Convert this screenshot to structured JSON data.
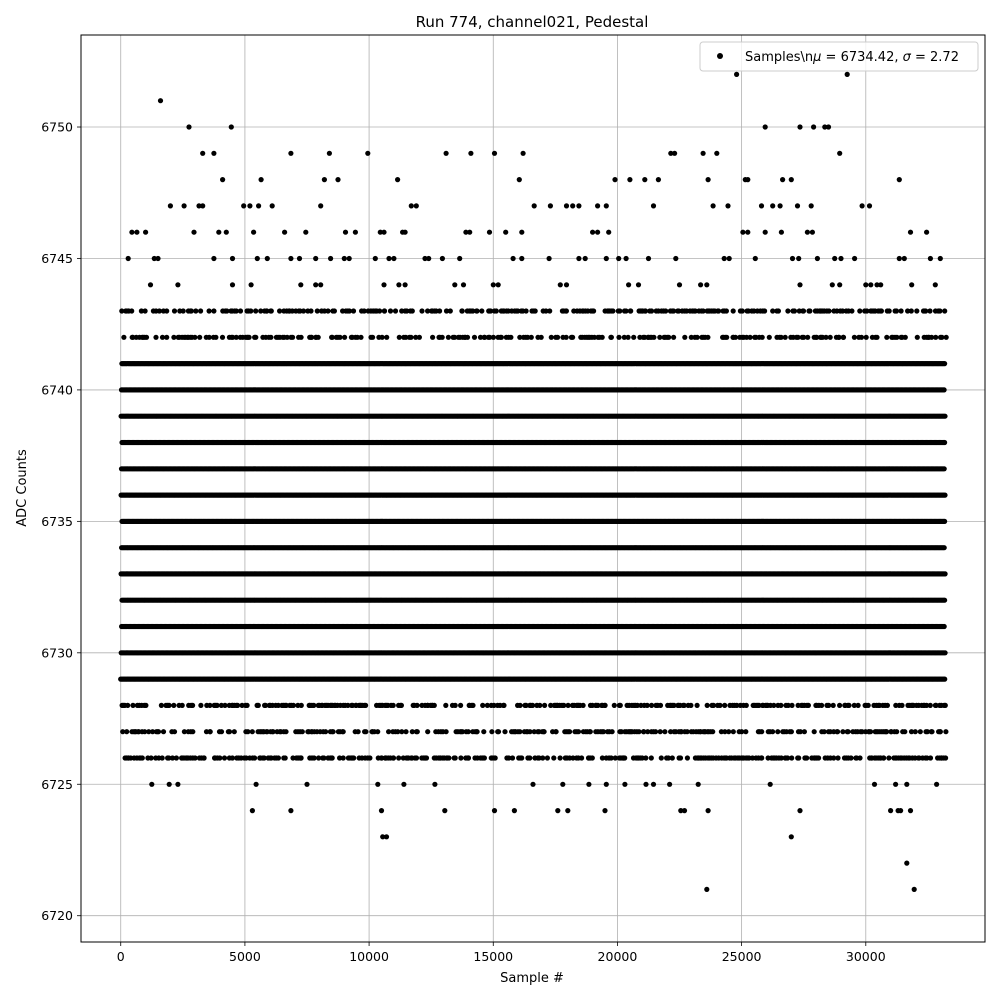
{
  "chart_data": {
    "type": "scatter",
    "title": "Run 774, channel021, Pedestal",
    "xlabel": "Sample #",
    "ylabel": "ADC Counts",
    "xlim": [
      -1600,
      34800
    ],
    "ylim": [
      6719.0,
      6753.5
    ],
    "xticks": [
      0,
      5000,
      10000,
      15000,
      20000,
      25000,
      30000
    ],
    "yticks": [
      6720,
      6725,
      6730,
      6735,
      6740,
      6745,
      6750
    ],
    "grid": true,
    "legend": {
      "position": "top-right",
      "entries": [
        {
          "label": "Samples\\n$\\mu$ = 6734.42, $\\sigma$ = 2.72",
          "label_prefix": "Samples\\n",
          "mu_symbol": "μ",
          "mu_text": " = 6734.42, ",
          "sigma_symbol": "σ",
          "sigma_text": " = 2.72"
        }
      ]
    },
    "marker_color": "#000000",
    "n_samples": 33200,
    "series": [
      {
        "name": "Samples",
        "dense_levels": [
          6729,
          6730,
          6731,
          6732,
          6733,
          6734,
          6735,
          6736,
          6737,
          6738,
          6739,
          6740,
          6741
        ],
        "sparse_levels": [
          6726,
          6727,
          6728,
          6742,
          6743
        ],
        "points": [
          {
            "x": 1600,
            "y": 6751
          },
          {
            "x": 2750,
            "y": 6750
          },
          {
            "x": 4450,
            "y": 6750
          },
          {
            "x": 25950,
            "y": 6750
          },
          {
            "x": 27350,
            "y": 6750
          },
          {
            "x": 27900,
            "y": 6750
          },
          {
            "x": 28350,
            "y": 6750
          },
          {
            "x": 28500,
            "y": 6750
          },
          {
            "x": 24800,
            "y": 6752
          },
          {
            "x": 29250,
            "y": 6752
          },
          {
            "x": 3300,
            "y": 6749
          },
          {
            "x": 3750,
            "y": 6749
          },
          {
            "x": 6850,
            "y": 6749
          },
          {
            "x": 8400,
            "y": 6749
          },
          {
            "x": 9950,
            "y": 6749
          },
          {
            "x": 13100,
            "y": 6749
          },
          {
            "x": 14100,
            "y": 6749
          },
          {
            "x": 15050,
            "y": 6749
          },
          {
            "x": 16200,
            "y": 6749
          },
          {
            "x": 22150,
            "y": 6749
          },
          {
            "x": 22300,
            "y": 6749
          },
          {
            "x": 23450,
            "y": 6749
          },
          {
            "x": 24000,
            "y": 6749
          },
          {
            "x": 28950,
            "y": 6749
          },
          {
            "x": 4100,
            "y": 6748
          },
          {
            "x": 5650,
            "y": 6748
          },
          {
            "x": 8200,
            "y": 6748
          },
          {
            "x": 8750,
            "y": 6748
          },
          {
            "x": 11150,
            "y": 6748
          },
          {
            "x": 16050,
            "y": 6748
          },
          {
            "x": 19900,
            "y": 6748
          },
          {
            "x": 20500,
            "y": 6748
          },
          {
            "x": 21100,
            "y": 6748
          },
          {
            "x": 21650,
            "y": 6748
          },
          {
            "x": 23650,
            "y": 6748
          },
          {
            "x": 25150,
            "y": 6748
          },
          {
            "x": 25250,
            "y": 6748
          },
          {
            "x": 26650,
            "y": 6748
          },
          {
            "x": 27000,
            "y": 6748
          },
          {
            "x": 31350,
            "y": 6748
          },
          {
            "x": 2000,
            "y": 6747
          },
          {
            "x": 2550,
            "y": 6747
          },
          {
            "x": 3150,
            "y": 6747
          },
          {
            "x": 3300,
            "y": 6747
          },
          {
            "x": 4950,
            "y": 6747
          },
          {
            "x": 5200,
            "y": 6747
          },
          {
            "x": 5550,
            "y": 6747
          },
          {
            "x": 6100,
            "y": 6747
          },
          {
            "x": 8050,
            "y": 6747
          },
          {
            "x": 11700,
            "y": 6747
          },
          {
            "x": 11900,
            "y": 6747
          },
          {
            "x": 16650,
            "y": 6747
          },
          {
            "x": 17300,
            "y": 6747
          },
          {
            "x": 17950,
            "y": 6747
          },
          {
            "x": 18200,
            "y": 6747
          },
          {
            "x": 18450,
            "y": 6747
          },
          {
            "x": 19200,
            "y": 6747
          },
          {
            "x": 19550,
            "y": 6747
          },
          {
            "x": 21450,
            "y": 6747
          },
          {
            "x": 23850,
            "y": 6747
          },
          {
            "x": 24450,
            "y": 6747
          },
          {
            "x": 25800,
            "y": 6747
          },
          {
            "x": 26250,
            "y": 6747
          },
          {
            "x": 26550,
            "y": 6747
          },
          {
            "x": 27250,
            "y": 6747
          },
          {
            "x": 27800,
            "y": 6747
          },
          {
            "x": 29850,
            "y": 6747
          },
          {
            "x": 30150,
            "y": 6747
          },
          {
            "x": 450,
            "y": 6746
          },
          {
            "x": 650,
            "y": 6746
          },
          {
            "x": 1000,
            "y": 6746
          },
          {
            "x": 2950,
            "y": 6746
          },
          {
            "x": 3950,
            "y": 6746
          },
          {
            "x": 4250,
            "y": 6746
          },
          {
            "x": 5350,
            "y": 6746
          },
          {
            "x": 6600,
            "y": 6746
          },
          {
            "x": 7450,
            "y": 6746
          },
          {
            "x": 9050,
            "y": 6746
          },
          {
            "x": 9450,
            "y": 6746
          },
          {
            "x": 10450,
            "y": 6746
          },
          {
            "x": 10600,
            "y": 6746
          },
          {
            "x": 11350,
            "y": 6746
          },
          {
            "x": 11450,
            "y": 6746
          },
          {
            "x": 13900,
            "y": 6746
          },
          {
            "x": 14050,
            "y": 6746
          },
          {
            "x": 14850,
            "y": 6746
          },
          {
            "x": 15500,
            "y": 6746
          },
          {
            "x": 16150,
            "y": 6746
          },
          {
            "x": 19000,
            "y": 6746
          },
          {
            "x": 19200,
            "y": 6746
          },
          {
            "x": 19650,
            "y": 6746
          },
          {
            "x": 25050,
            "y": 6746
          },
          {
            "x": 25250,
            "y": 6746
          },
          {
            "x": 25950,
            "y": 6746
          },
          {
            "x": 26600,
            "y": 6746
          },
          {
            "x": 27650,
            "y": 6746
          },
          {
            "x": 27850,
            "y": 6746
          },
          {
            "x": 31800,
            "y": 6746
          },
          {
            "x": 32450,
            "y": 6746
          },
          {
            "x": 300,
            "y": 6745
          },
          {
            "x": 1350,
            "y": 6745
          },
          {
            "x": 1500,
            "y": 6745
          },
          {
            "x": 3750,
            "y": 6745
          },
          {
            "x": 4500,
            "y": 6745
          },
          {
            "x": 5500,
            "y": 6745
          },
          {
            "x": 5900,
            "y": 6745
          },
          {
            "x": 6850,
            "y": 6745
          },
          {
            "x": 7200,
            "y": 6745
          },
          {
            "x": 7850,
            "y": 6745
          },
          {
            "x": 8450,
            "y": 6745
          },
          {
            "x": 9000,
            "y": 6745
          },
          {
            "x": 9200,
            "y": 6745
          },
          {
            "x": 10250,
            "y": 6745
          },
          {
            "x": 10800,
            "y": 6745
          },
          {
            "x": 11000,
            "y": 6745
          },
          {
            "x": 12250,
            "y": 6745
          },
          {
            "x": 12400,
            "y": 6745
          },
          {
            "x": 12950,
            "y": 6745
          },
          {
            "x": 13650,
            "y": 6745
          },
          {
            "x": 15800,
            "y": 6745
          },
          {
            "x": 16150,
            "y": 6745
          },
          {
            "x": 17250,
            "y": 6745
          },
          {
            "x": 18450,
            "y": 6745
          },
          {
            "x": 18700,
            "y": 6745
          },
          {
            "x": 19550,
            "y": 6745
          },
          {
            "x": 20050,
            "y": 6745
          },
          {
            "x": 20350,
            "y": 6745
          },
          {
            "x": 21250,
            "y": 6745
          },
          {
            "x": 22350,
            "y": 6745
          },
          {
            "x": 24300,
            "y": 6745
          },
          {
            "x": 24500,
            "y": 6745
          },
          {
            "x": 25550,
            "y": 6745
          },
          {
            "x": 27050,
            "y": 6745
          },
          {
            "x": 27300,
            "y": 6745
          },
          {
            "x": 28050,
            "y": 6745
          },
          {
            "x": 28750,
            "y": 6745
          },
          {
            "x": 29000,
            "y": 6745
          },
          {
            "x": 29550,
            "y": 6745
          },
          {
            "x": 31350,
            "y": 6745
          },
          {
            "x": 31550,
            "y": 6745
          },
          {
            "x": 32600,
            "y": 6745
          },
          {
            "x": 33000,
            "y": 6745
          },
          {
            "x": 1200,
            "y": 6744
          },
          {
            "x": 2300,
            "y": 6744
          },
          {
            "x": 4500,
            "y": 6744
          },
          {
            "x": 5250,
            "y": 6744
          },
          {
            "x": 7250,
            "y": 6744
          },
          {
            "x": 7850,
            "y": 6744
          },
          {
            "x": 8050,
            "y": 6744
          },
          {
            "x": 10600,
            "y": 6744
          },
          {
            "x": 11200,
            "y": 6744
          },
          {
            "x": 11450,
            "y": 6744
          },
          {
            "x": 13450,
            "y": 6744
          },
          {
            "x": 13800,
            "y": 6744
          },
          {
            "x": 15000,
            "y": 6744
          },
          {
            "x": 15200,
            "y": 6744
          },
          {
            "x": 17700,
            "y": 6744
          },
          {
            "x": 17950,
            "y": 6744
          },
          {
            "x": 20450,
            "y": 6744
          },
          {
            "x": 20850,
            "y": 6744
          },
          {
            "x": 22500,
            "y": 6744
          },
          {
            "x": 23350,
            "y": 6744
          },
          {
            "x": 23600,
            "y": 6744
          },
          {
            "x": 27350,
            "y": 6744
          },
          {
            "x": 28650,
            "y": 6744
          },
          {
            "x": 28950,
            "y": 6744
          },
          {
            "x": 30000,
            "y": 6744
          },
          {
            "x": 30200,
            "y": 6744
          },
          {
            "x": 30450,
            "y": 6744
          },
          {
            "x": 30600,
            "y": 6744
          },
          {
            "x": 31850,
            "y": 6744
          },
          {
            "x": 32800,
            "y": 6744
          },
          {
            "x": 300,
            "y": 6726
          },
          {
            "x": 650,
            "y": 6726
          },
          {
            "x": 2450,
            "y": 6726
          },
          {
            "x": 3350,
            "y": 6726
          },
          {
            "x": 3800,
            "y": 6726
          },
          {
            "x": 5600,
            "y": 6726
          },
          {
            "x": 6350,
            "y": 6726
          },
          {
            "x": 7250,
            "y": 6726
          },
          {
            "x": 7700,
            "y": 6726
          },
          {
            "x": 8500,
            "y": 6726
          },
          {
            "x": 10650,
            "y": 6726
          },
          {
            "x": 12250,
            "y": 6726
          },
          {
            "x": 12850,
            "y": 6726
          },
          {
            "x": 14000,
            "y": 6726
          },
          {
            "x": 15550,
            "y": 6726
          },
          {
            "x": 16800,
            "y": 6726
          },
          {
            "x": 18900,
            "y": 6726
          },
          {
            "x": 19550,
            "y": 6726
          },
          {
            "x": 20250,
            "y": 6726
          },
          {
            "x": 20850,
            "y": 6726
          },
          {
            "x": 22050,
            "y": 6726
          },
          {
            "x": 23350,
            "y": 6726
          },
          {
            "x": 24850,
            "y": 6726
          },
          {
            "x": 26400,
            "y": 6726
          },
          {
            "x": 27550,
            "y": 6726
          },
          {
            "x": 27950,
            "y": 6726
          },
          {
            "x": 29600,
            "y": 6726
          },
          {
            "x": 30600,
            "y": 6726
          },
          {
            "x": 31450,
            "y": 6726
          },
          {
            "x": 32150,
            "y": 6726
          },
          {
            "x": 33050,
            "y": 6726
          },
          {
            "x": 1250,
            "y": 6725
          },
          {
            "x": 1950,
            "y": 6725
          },
          {
            "x": 2300,
            "y": 6725
          },
          {
            "x": 5450,
            "y": 6725
          },
          {
            "x": 7500,
            "y": 6725
          },
          {
            "x": 10350,
            "y": 6725
          },
          {
            "x": 11400,
            "y": 6725
          },
          {
            "x": 12650,
            "y": 6725
          },
          {
            "x": 16600,
            "y": 6725
          },
          {
            "x": 17800,
            "y": 6725
          },
          {
            "x": 18850,
            "y": 6725
          },
          {
            "x": 19550,
            "y": 6725
          },
          {
            "x": 20300,
            "y": 6725
          },
          {
            "x": 21150,
            "y": 6725
          },
          {
            "x": 21450,
            "y": 6725
          },
          {
            "x": 22100,
            "y": 6725
          },
          {
            "x": 23250,
            "y": 6725
          },
          {
            "x": 26150,
            "y": 6725
          },
          {
            "x": 30350,
            "y": 6725
          },
          {
            "x": 31200,
            "y": 6725
          },
          {
            "x": 31650,
            "y": 6725
          },
          {
            "x": 32850,
            "y": 6725
          },
          {
            "x": 5300,
            "y": 6724
          },
          {
            "x": 6850,
            "y": 6724
          },
          {
            "x": 10500,
            "y": 6724
          },
          {
            "x": 13050,
            "y": 6724
          },
          {
            "x": 15050,
            "y": 6724
          },
          {
            "x": 15850,
            "y": 6724
          },
          {
            "x": 17600,
            "y": 6724
          },
          {
            "x": 18000,
            "y": 6724
          },
          {
            "x": 19500,
            "y": 6724
          },
          {
            "x": 22550,
            "y": 6724
          },
          {
            "x": 22700,
            "y": 6724
          },
          {
            "x": 23650,
            "y": 6724
          },
          {
            "x": 27350,
            "y": 6724
          },
          {
            "x": 31000,
            "y": 6724
          },
          {
            "x": 31300,
            "y": 6724
          },
          {
            "x": 31400,
            "y": 6724
          },
          {
            "x": 31800,
            "y": 6724
          },
          {
            "x": 10550,
            "y": 6723
          },
          {
            "x": 10700,
            "y": 6723
          },
          {
            "x": 27000,
            "y": 6723
          },
          {
            "x": 31650,
            "y": 6722
          },
          {
            "x": 23600,
            "y": 6721
          },
          {
            "x": 31950,
            "y": 6721
          }
        ]
      }
    ]
  }
}
